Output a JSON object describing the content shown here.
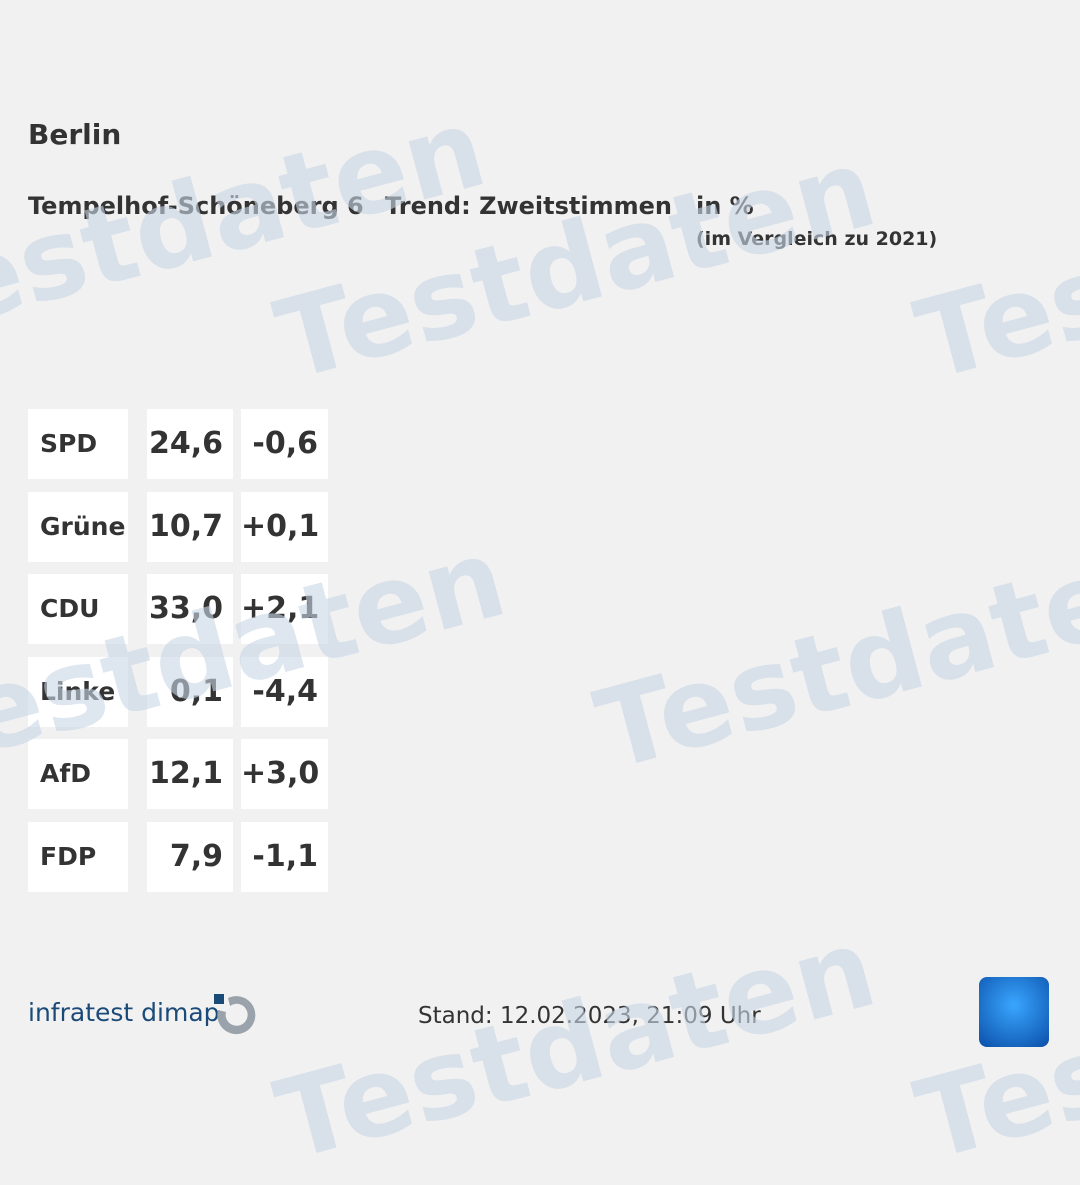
{
  "header": {
    "title": "Berlin",
    "district": "Tempelhof-Schöneberg 6",
    "trend": "Trend: Zweitstimmen",
    "unit": "in %",
    "comparison": "(im Vergleich zu 2021)"
  },
  "results": [
    {
      "party": "SPD",
      "value": "24,6",
      "diff": "-0,6"
    },
    {
      "party": "Grüne",
      "value": "10,7",
      "diff": "+0,1"
    },
    {
      "party": "CDU",
      "value": "33,0",
      "diff": "+2,1"
    },
    {
      "party": "Linke",
      "value": "0,1",
      "diff": "-4,4"
    },
    {
      "party": "AfD",
      "value": "12,1",
      "diff": "+3,0"
    },
    {
      "party": "FDP",
      "value": "7,9",
      "diff": "-1,1"
    }
  ],
  "footer": {
    "brand": "infratest dimap",
    "stand": "Stand: 12.02.2023, 21:09 Uhr"
  },
  "watermark": "Testdaten",
  "colors": {
    "brand": "#1a4a78",
    "background": "#f1f1f1"
  }
}
